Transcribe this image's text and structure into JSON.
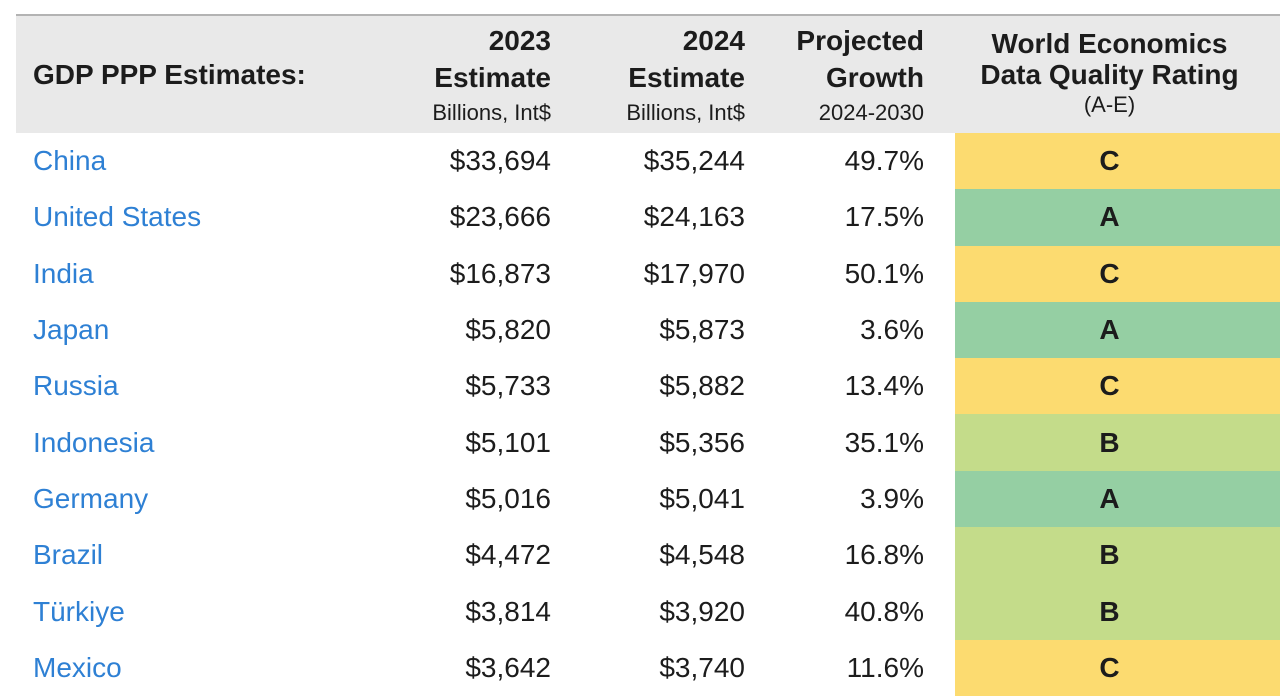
{
  "chart_data": {
    "type": "table",
    "title": "GDP PPP Estimates:",
    "header": {
      "col1": "GDP PPP Estimates:",
      "col2": {
        "top": "2023",
        "main": "Estimate",
        "sub": "Billions, Int$"
      },
      "col3": {
        "top": "2024",
        "main": "Estimate",
        "sub": "Billions, Int$"
      },
      "col4": {
        "top": "Projected",
        "main": "Growth",
        "sub": "2024-2030"
      },
      "col5": {
        "line1": "World Economics",
        "line2": "Data Quality Rating",
        "sub": "(A-E)"
      }
    },
    "rows": [
      {
        "country": "China",
        "est2023": "$33,694",
        "est2024": "$35,244",
        "growth": "49.7%",
        "rating": "C"
      },
      {
        "country": "United States",
        "est2023": "$23,666",
        "est2024": "$24,163",
        "growth": "17.5%",
        "rating": "A"
      },
      {
        "country": "India",
        "est2023": "$16,873",
        "est2024": "$17,970",
        "growth": "50.1%",
        "rating": "C"
      },
      {
        "country": "Japan",
        "est2023": "$5,820",
        "est2024": "$5,873",
        "growth": "3.6%",
        "rating": "A"
      },
      {
        "country": "Russia",
        "est2023": "$5,733",
        "est2024": "$5,882",
        "growth": "13.4%",
        "rating": "C"
      },
      {
        "country": "Indonesia",
        "est2023": "$5,101",
        "est2024": "$5,356",
        "growth": "35.1%",
        "rating": "B"
      },
      {
        "country": "Germany",
        "est2023": "$5,016",
        "est2024": "$5,041",
        "growth": "3.9%",
        "rating": "A"
      },
      {
        "country": "Brazil",
        "est2023": "$4,472",
        "est2024": "$4,548",
        "growth": "16.8%",
        "rating": "B"
      },
      {
        "country": "Türkiye",
        "est2023": "$3,814",
        "est2024": "$3,920",
        "growth": "40.8%",
        "rating": "B"
      },
      {
        "country": "Mexico",
        "est2023": "$3,642",
        "est2024": "$3,740",
        "growth": "11.6%",
        "rating": "C"
      }
    ],
    "rating_colors": {
      "A": "#95cfa3",
      "B": "#c4dc8a",
      "C": "#fcdb70"
    },
    "colors": {
      "header_bg": "#e9e9e9",
      "top_border": "#b3b3b3",
      "link_blue": "#2e80d4",
      "text": "#1c1c1c"
    },
    "layout": {
      "grid": "off",
      "header_rows": 1,
      "data_rows": 10
    }
  }
}
